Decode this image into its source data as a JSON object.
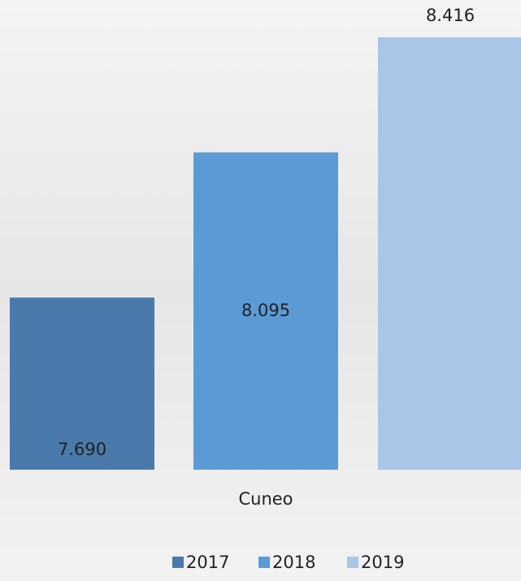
{
  "chart_data": {
    "type": "bar",
    "categories": [
      "Cuneo"
    ],
    "series": [
      {
        "name": "2017",
        "color": "#4a7aab",
        "values": [
          7690
        ],
        "value_labels": [
          "7.690"
        ]
      },
      {
        "name": "2018",
        "color": "#5b9bd5",
        "values": [
          8095
        ],
        "value_labels": [
          "8.095"
        ]
      },
      {
        "name": "2019",
        "color": "#a9c5e8",
        "values": [
          8416
        ],
        "value_labels": [
          "8.416"
        ]
      }
    ],
    "ylim": [
      7210,
      8520
    ]
  }
}
